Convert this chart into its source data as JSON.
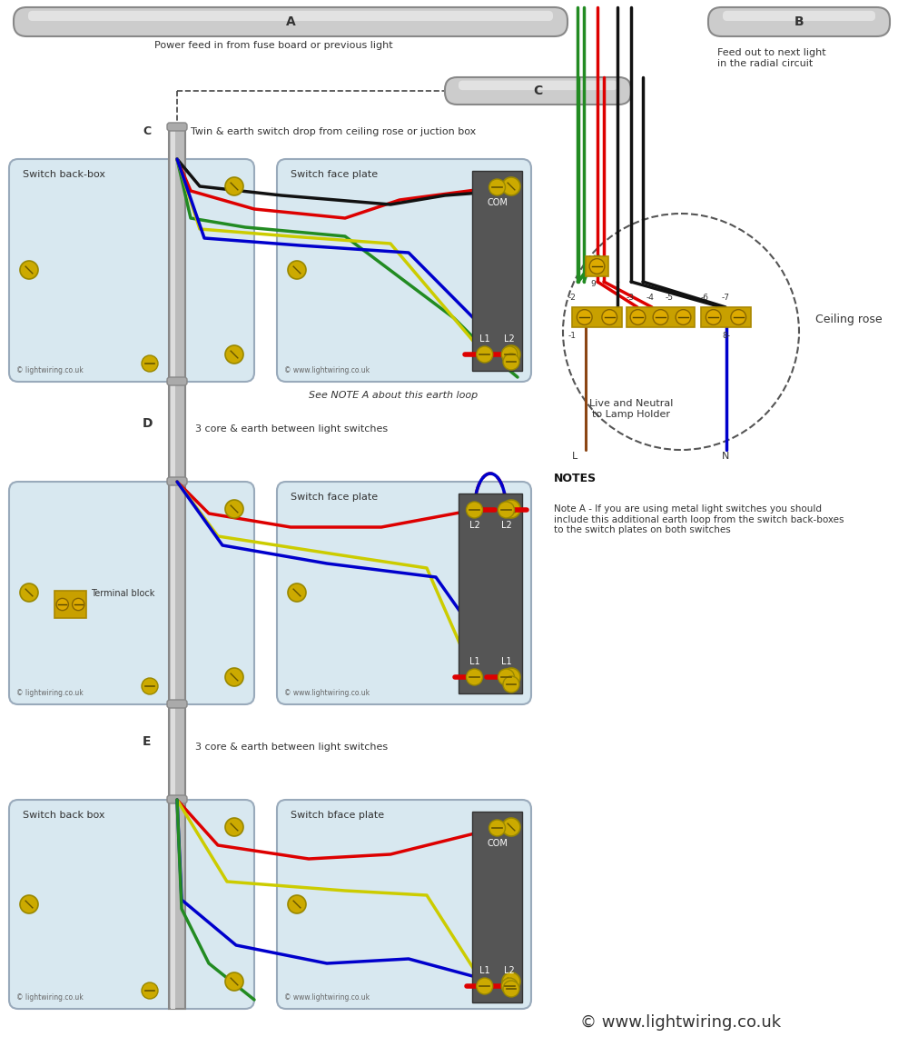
{
  "bg_color": "#ffffff",
  "text_power_feed": "Power feed in from fuse board or previous light",
  "text_feed_out": "Feed out to next light\nin the radial circuit",
  "text_twin_earth": "Twin & earth switch drop from ceiling rose or juction box",
  "text_D": "D",
  "text_3core_D": "3 core & earth between light switches",
  "text_E": "E",
  "text_3core_E": "3 core & earth between light switches",
  "text_see_note": "See NOTE A about this earth loop",
  "text_sw1_back": "Switch back-box",
  "text_sw1_face": "Switch face plate",
  "text_sw2_face": "Switch face plate",
  "text_sw3_back": "Switch back box",
  "text_sw3_face": "Switch bface plate",
  "text_ceiling_rose": "Ceiling rose",
  "text_live_neutral": "Live and Neutral\nto Lamp Holder",
  "text_terminal": "Terminal block",
  "notes_title": "NOTES",
  "notes_text": "Note A - If you are using metal light switches you should\ninclude this additional earth loop from the switch back-boxes\nto the switch plates on both switches",
  "text_copyright_main": "© www.lightwiring.co.uk",
  "text_copyright1": "© lightwiring.co.uk",
  "text_copyright2": "© www.lightwiring.co.uk",
  "wire_red": "#dd0000",
  "wire_black": "#111111",
  "wire_green": "#228B22",
  "wire_yellow": "#cccc00",
  "wire_blue": "#0000cc",
  "wire_brown": "#8B4513",
  "box_fill": "#d8e8f0",
  "box_stroke": "#99aabb",
  "switch_body": "#606060"
}
